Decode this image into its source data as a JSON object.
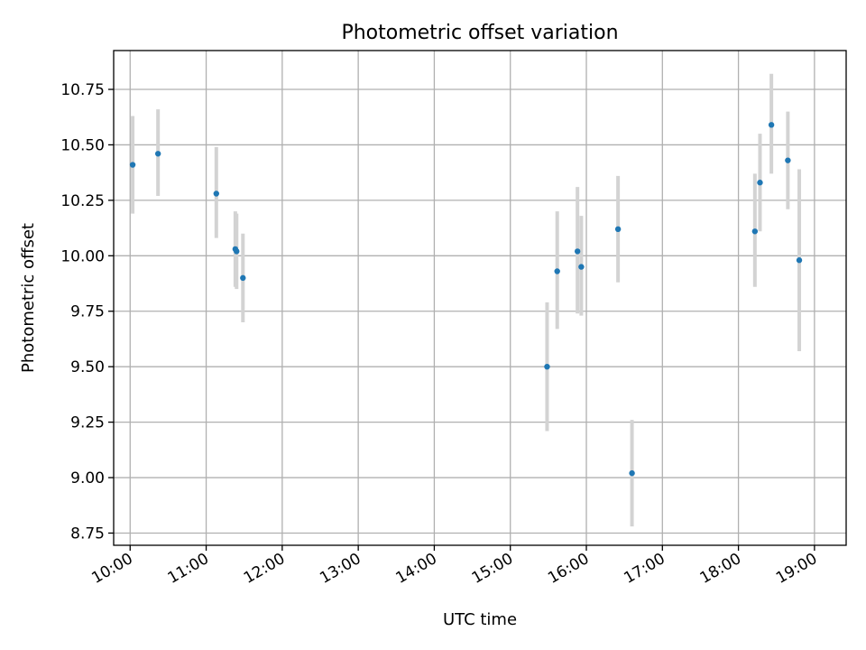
{
  "chart_data": {
    "type": "scatter",
    "title": "Photometric offset variation",
    "xlabel": "UTC time",
    "ylabel": "Photometric offset",
    "x_unit": "hours UTC",
    "xlim": [
      "09:47",
      "19:25"
    ],
    "ylim": [
      8.695,
      10.925
    ],
    "x_ticks": [
      "10:00",
      "11:00",
      "12:00",
      "13:00",
      "14:00",
      "15:00",
      "16:00",
      "17:00",
      "18:00",
      "19:00"
    ],
    "y_ticks": [
      "8.75",
      "9.00",
      "9.25",
      "9.50",
      "9.75",
      "10.00",
      "10.25",
      "10.50",
      "10.75"
    ],
    "grid": true,
    "marker_color": "#1f77b4",
    "errorbar_color": "#d3d3d3",
    "points": [
      {
        "x": "10:02",
        "y": 10.41,
        "ylow": 10.19,
        "yhigh": 10.63
      },
      {
        "x": "10:22",
        "y": 10.46,
        "ylow": 10.27,
        "yhigh": 10.66
      },
      {
        "x": "11:08",
        "y": 10.28,
        "ylow": 10.08,
        "yhigh": 10.49
      },
      {
        "x": "11:23",
        "y": 10.03,
        "ylow": 9.86,
        "yhigh": 10.2
      },
      {
        "x": "11:24",
        "y": 10.02,
        "ylow": 9.85,
        "yhigh": 10.19
      },
      {
        "x": "11:29",
        "y": 9.9,
        "ylow": 9.7,
        "yhigh": 10.1
      },
      {
        "x": "15:29",
        "y": 9.5,
        "ylow": 9.21,
        "yhigh": 9.79
      },
      {
        "x": "15:37",
        "y": 9.93,
        "ylow": 9.67,
        "yhigh": 10.2
      },
      {
        "x": "15:53",
        "y": 10.02,
        "ylow": 9.74,
        "yhigh": 10.31
      },
      {
        "x": "15:56",
        "y": 9.95,
        "ylow": 9.73,
        "yhigh": 10.18
      },
      {
        "x": "16:25",
        "y": 10.12,
        "ylow": 9.88,
        "yhigh": 10.36
      },
      {
        "x": "16:36",
        "y": 9.02,
        "ylow": 8.78,
        "yhigh": 9.26
      },
      {
        "x": "18:13",
        "y": 10.11,
        "ylow": 9.86,
        "yhigh": 10.37
      },
      {
        "x": "18:17",
        "y": 10.33,
        "ylow": 10.11,
        "yhigh": 10.55
      },
      {
        "x": "18:26",
        "y": 10.59,
        "ylow": 10.37,
        "yhigh": 10.82
      },
      {
        "x": "18:39",
        "y": 10.43,
        "ylow": 10.21,
        "yhigh": 10.65
      },
      {
        "x": "18:48",
        "y": 9.98,
        "ylow": 9.57,
        "yhigh": 10.39
      }
    ]
  }
}
